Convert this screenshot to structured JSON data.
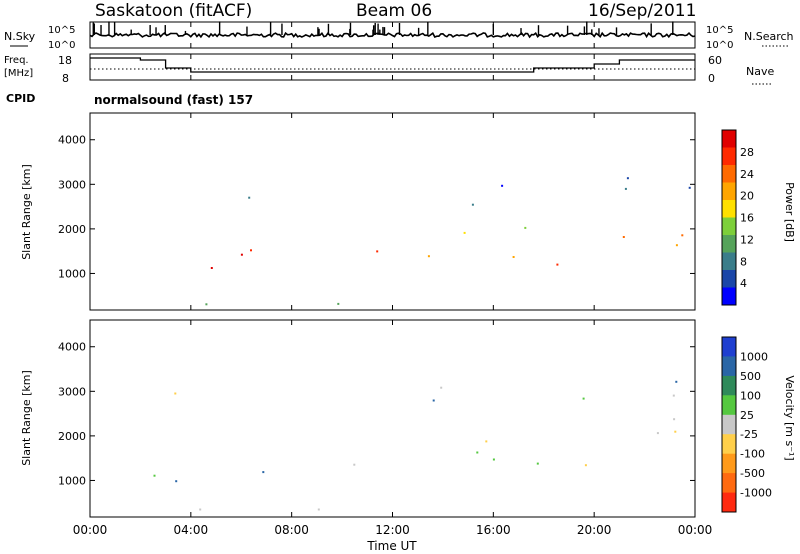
{
  "header": {
    "station": "Saskatoon (fitACF)",
    "beam": "Beam 06",
    "date": "16/Sep/2011"
  },
  "noise": {
    "left_label": "N.Sky",
    "right_label": "N.Search",
    "tick_top": "10^5",
    "tick_bottom": "10^0"
  },
  "freq": {
    "left_label_1": "Freq.",
    "left_label_2": "[MHz]",
    "ticks_left": [
      "18",
      "8"
    ],
    "right_label": "Nave",
    "ticks_right": [
      "60",
      "0"
    ]
  },
  "cpid": {
    "label": "CPID",
    "value": "normalsound (fast) 157"
  },
  "power_panel": {
    "ylabel": "Slant Range [km]",
    "yticks": [
      "4000",
      "3000",
      "2000",
      "1000"
    ],
    "colorbar_label": "Power [dB]",
    "colorbar_ticks": [
      "28",
      "24",
      "20",
      "16",
      "12",
      "8",
      "4"
    ],
    "colors": [
      "#0000ff",
      "#1a46a8",
      "#3a7d8a",
      "#55a35a",
      "#7dcf3a",
      "#ffe000",
      "#ffa500",
      "#ff6a00",
      "#ff2a00",
      "#e00000"
    ]
  },
  "velocity_panel": {
    "ylabel": "Slant Range [km]",
    "yticks": [
      "4000",
      "3000",
      "2000",
      "1000"
    ],
    "colorbar_label": "Velocity [m s⁻¹]",
    "colorbar_ticks": [
      "1000",
      "500",
      "100",
      "25",
      "-25",
      "-100",
      "-500",
      "-1000"
    ],
    "colors": [
      "#1f3fd0",
      "#2a66a6",
      "#2f8a5a",
      "#55c840",
      "#c8c8c8",
      "#ffcf4a",
      "#ff9a1a",
      "#ff6a10",
      "#ff2a10"
    ]
  },
  "xaxis": {
    "label": "Time UT",
    "ticks": [
      "00:00",
      "04:00",
      "08:00",
      "12:00",
      "16:00",
      "20:00",
      "00:00"
    ]
  },
  "chart_data": {
    "type": "heatmap",
    "title": "Saskatoon (fitACF)  Beam 06  16/Sep/2011",
    "xlabel": "Time UT",
    "ylabel": "Slant Range [km]",
    "xlim_hours": [
      0,
      24
    ],
    "ylim_km": [
      180,
      4600
    ],
    "scatter_regions": [
      {
        "t0": 2.0,
        "t1": 2.5,
        "r0": 700,
        "r1": 1800,
        "power": 22,
        "velocity": 60
      },
      {
        "t0": 2.5,
        "t1": 6.0,
        "r0": 900,
        "r1": 1700,
        "power": 28,
        "velocity": 80
      },
      {
        "t0": 6.0,
        "t1": 8.0,
        "r0": 1100,
        "r1": 1600,
        "power": 24,
        "velocity": 150
      },
      {
        "t0": 9.2,
        "t1": 11.8,
        "r0": 1000,
        "r1": 1700,
        "power": 28,
        "velocity": -200
      },
      {
        "t0": 12.0,
        "t1": 18.0,
        "r0": 1200,
        "r1": 2200,
        "power": 18,
        "velocity": 0
      },
      {
        "t0": 18.0,
        "t1": 19.8,
        "r0": 1000,
        "r1": 1600,
        "power": 20,
        "velocity": 0
      },
      {
        "t0": 19.8,
        "t1": 24.0,
        "r0": 1500,
        "r1": 2400,
        "power": 22,
        "velocity": -50
      },
      {
        "t0": 3.0,
        "t1": 10.0,
        "r0": 200,
        "r1": 500,
        "power": 8,
        "velocity": -150
      },
      {
        "t0": 3.0,
        "t1": 7.0,
        "r0": 2600,
        "r1": 3000,
        "power": 6,
        "velocity": 20
      },
      {
        "t0": 12.5,
        "t1": 17.0,
        "r0": 2500,
        "r1": 3200,
        "power": 6,
        "velocity": 20
      },
      {
        "t0": 19.5,
        "t1": 24.0,
        "r0": 2600,
        "r1": 3400,
        "power": 8,
        "velocity": -40
      }
    ],
    "freq_mhz_steps": [
      [
        0.0,
        17
      ],
      [
        2.0,
        16
      ],
      [
        3.0,
        12
      ],
      [
        4.0,
        10
      ],
      [
        17.6,
        12
      ],
      [
        20.0,
        14
      ],
      [
        21.0,
        16
      ]
    ],
    "power_range_db": [
      0,
      30
    ],
    "velocity_range_ms": [
      -1000,
      1000
    ]
  }
}
